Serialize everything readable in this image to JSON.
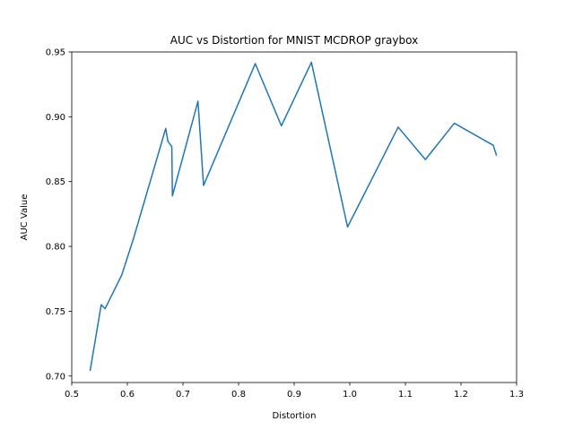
{
  "chart_data": {
    "type": "line",
    "title": "AUC vs Distortion for MNIST MCDROP graybox",
    "xlabel": "Distortion",
    "ylabel": "AUC Value",
    "xlim": [
      0.5,
      1.3
    ],
    "ylim": [
      0.695,
      0.95
    ],
    "xticks": [
      0.5,
      0.6,
      0.7,
      0.8,
      0.9,
      1.0,
      1.1,
      1.2,
      1.3
    ],
    "xtick_labels": [
      "0.5",
      "0.6",
      "0.7",
      "0.8",
      "0.9",
      "1.0",
      "1.1",
      "1.2",
      "1.3"
    ],
    "yticks": [
      0.7,
      0.75,
      0.8,
      0.85,
      0.9,
      0.95
    ],
    "ytick_labels": [
      "0.70",
      "0.75",
      "0.80",
      "0.85",
      "0.90",
      "0.95"
    ],
    "grid": false,
    "legend": false,
    "color": "#1f77b4",
    "series": [
      {
        "x": [
          0.533,
          0.553,
          0.56,
          0.59,
          0.611,
          0.669,
          0.673,
          0.68,
          0.681,
          0.727,
          0.737,
          0.83,
          0.877,
          0.931,
          0.996,
          1.087,
          1.136,
          1.188,
          1.258,
          1.264
        ],
        "y": [
          0.704,
          0.755,
          0.752,
          0.778,
          0.806,
          0.891,
          0.881,
          0.877,
          0.839,
          0.912,
          0.847,
          0.941,
          0.893,
          0.942,
          0.815,
          0.892,
          0.867,
          0.895,
          0.878,
          0.87
        ]
      }
    ]
  }
}
